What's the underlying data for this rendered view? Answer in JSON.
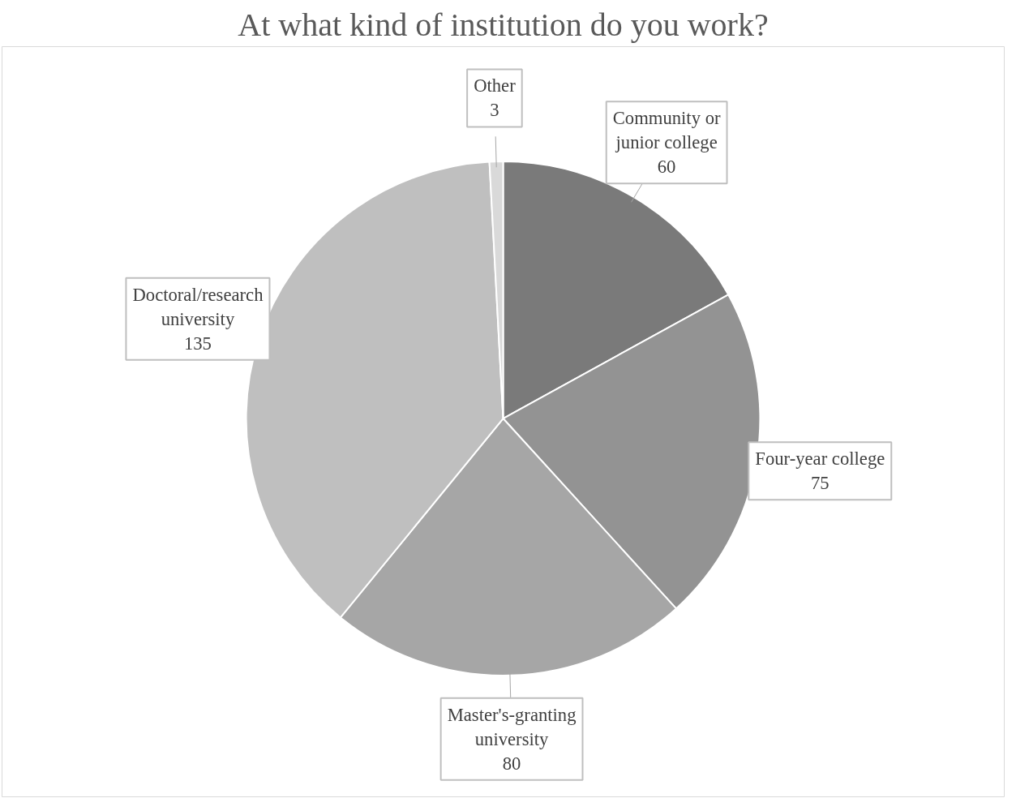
{
  "chart_data": {
    "type": "pie",
    "title": "At what kind of institution do you work?",
    "categories": [
      "Community or junior college",
      "Four-year college",
      "Master's-granting university",
      "Doctoral/research university",
      "Other"
    ],
    "values": [
      60,
      75,
      80,
      135,
      3
    ],
    "colors": [
      "#7a7a7a",
      "#939393",
      "#a6a6a6",
      "#bfbfbf",
      "#d9d9d9"
    ],
    "data_labels": true
  }
}
